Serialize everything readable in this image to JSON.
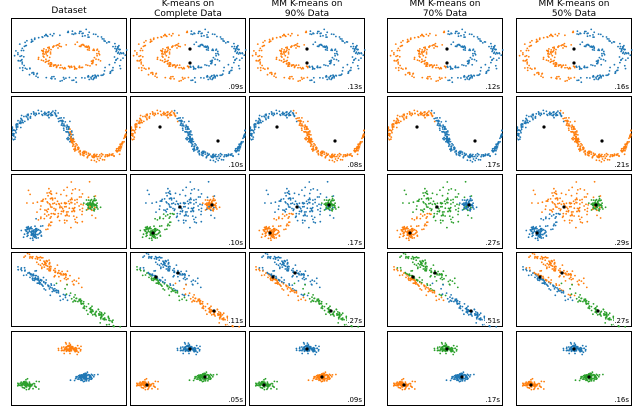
{
  "columns": [
    {
      "title_line1": "Dataset",
      "title_line2": ""
    },
    {
      "title_line1": "K-means on",
      "title_line2": "Complete Data"
    },
    {
      "title_line1": "MM K-means on",
      "title_line2": "90% Data"
    },
    {
      "title_line1": "MM K-means on",
      "title_line2": "70% Data"
    },
    {
      "title_line1": "MM K-means on",
      "title_line2": "50% Data"
    }
  ],
  "colors": {
    "blue": "#1f77b4",
    "orange": "#ff7f0e",
    "green": "#2ca02c",
    "centroid": "#000000"
  },
  "chart_data": [
    {
      "type": "scatter",
      "dataset": "noisy_circles",
      "clusters": 2,
      "times": [
        "",
        ".09s",
        ".13s",
        ".12s",
        ".16s"
      ]
    },
    {
      "type": "scatter",
      "dataset": "noisy_moons",
      "clusters": 2,
      "times": [
        "",
        ".10s",
        ".08s",
        ".17s",
        ".21s"
      ]
    },
    {
      "type": "scatter",
      "dataset": "varied_blobs",
      "clusters": 3,
      "times": [
        "",
        ".10s",
        ".17s",
        ".27s",
        ".29s"
      ]
    },
    {
      "type": "scatter",
      "dataset": "anisotropic_blobs",
      "clusters": 3,
      "times": [
        "",
        ".11s",
        ".27s",
        ".51s",
        ".27s"
      ]
    },
    {
      "type": "scatter",
      "dataset": "blobs",
      "clusters": 3,
      "times": [
        "",
        ".05s",
        ".09s",
        ".17s",
        ".16s"
      ]
    }
  ]
}
